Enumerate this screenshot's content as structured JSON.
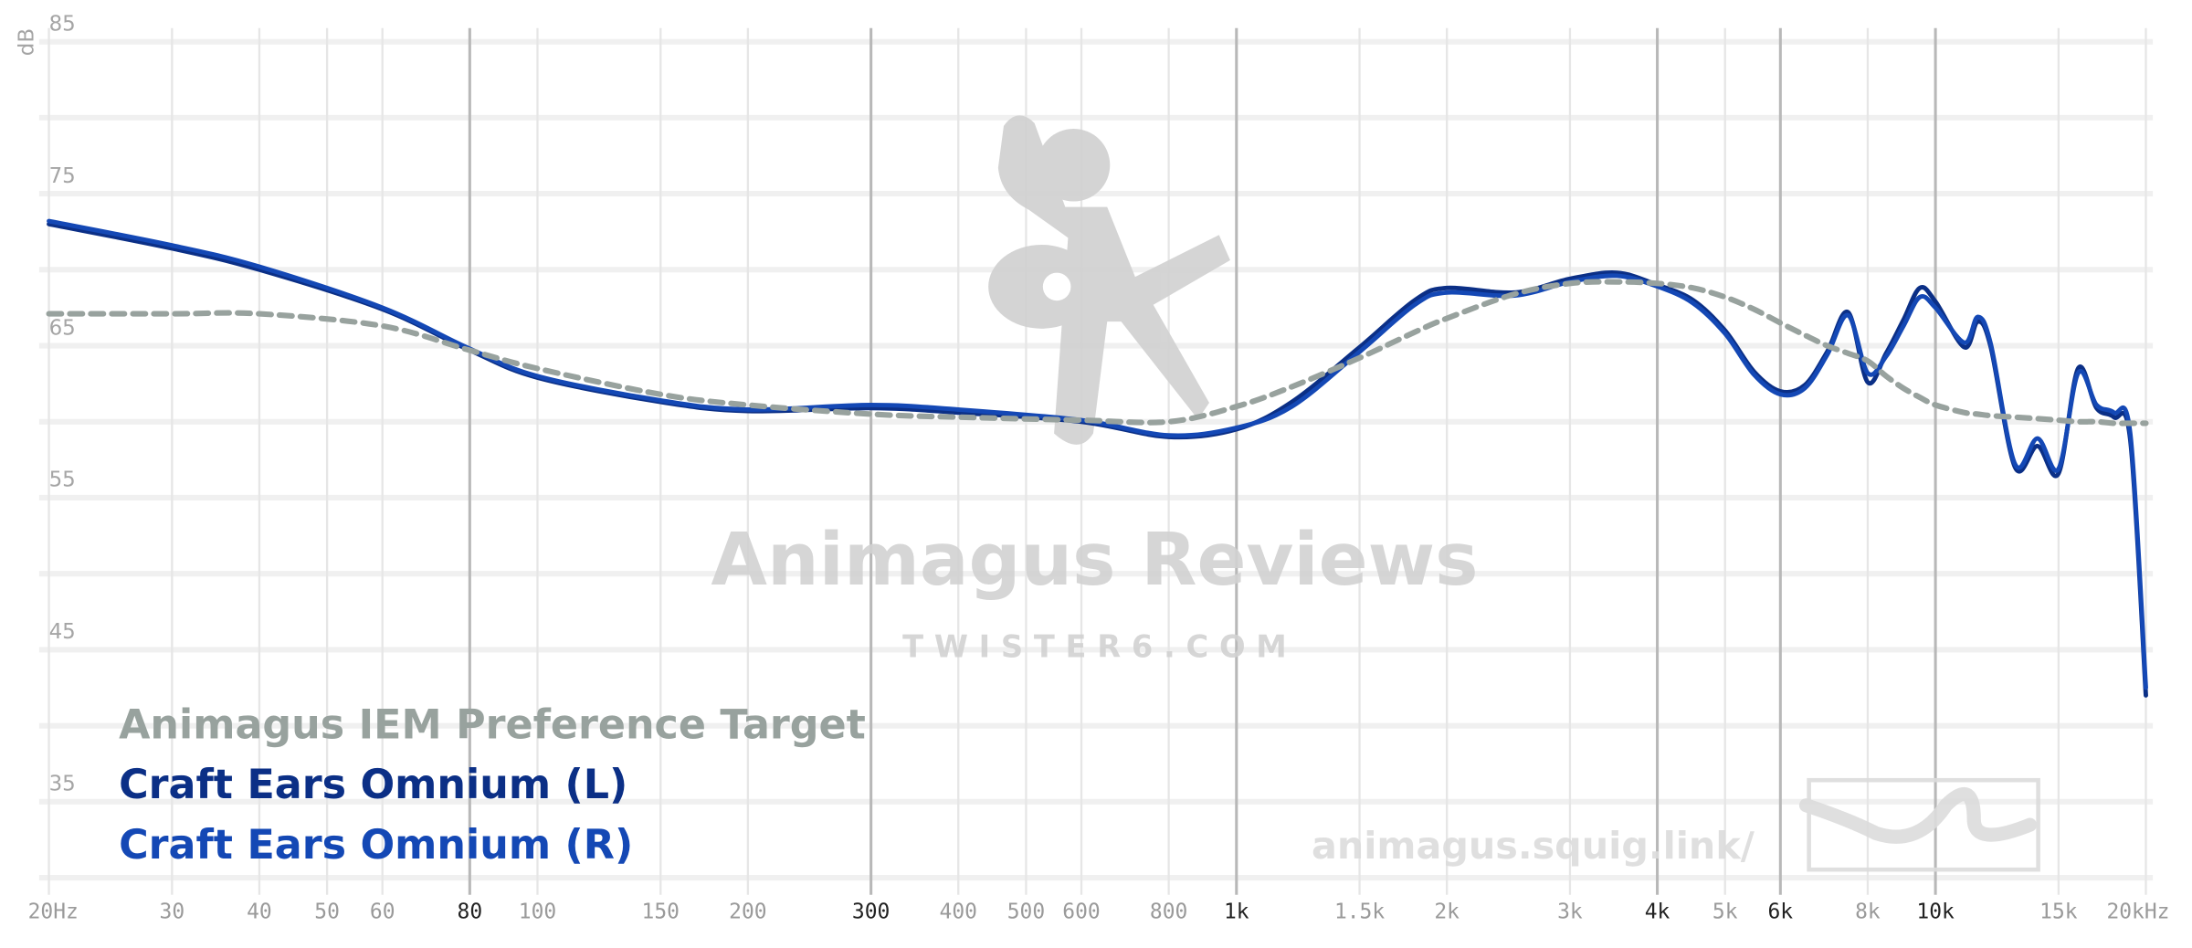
{
  "chart_data": {
    "type": "line",
    "y_label": "dB",
    "xscale": "log",
    "xlim": [
      20,
      20000
    ],
    "ylim": [
      29,
      87
    ],
    "xticks": [
      {
        "value": 20,
        "label": "20Hz"
      },
      30,
      40,
      50,
      60,
      80,
      100,
      150,
      200,
      300,
      400,
      500,
      600,
      800,
      {
        "value": 1000,
        "label": "1k"
      },
      {
        "value": 1500,
        "label": "1.5k"
      },
      {
        "value": 2000,
        "label": "2k"
      },
      {
        "value": 3000,
        "label": "3k"
      },
      {
        "value": 4000,
        "label": "4k"
      },
      {
        "value": 5000,
        "label": "5k"
      },
      {
        "value": 6000,
        "label": "6k"
      },
      {
        "value": 8000,
        "label": "8k"
      },
      {
        "value": 10000,
        "label": "10k"
      },
      {
        "value": 15000,
        "label": "15k"
      },
      {
        "value": 20000,
        "label": "20kHz"
      }
    ],
    "xticks_emphasis": [
      80,
      300,
      1000,
      4000,
      6000,
      10000
    ],
    "yticks": [
      35,
      45,
      55,
      65,
      75,
      85
    ],
    "ygrid": [
      30,
      35,
      40,
      45,
      50,
      55,
      60,
      65,
      70,
      75,
      80,
      85
    ],
    "grid": true,
    "legend": "bottom-left",
    "watermark": {
      "title": "Animagus Reviews",
      "subtitle": "T W I S T E R 6 . C O M",
      "url": "animagus.squig.link/"
    },
    "x": [
      20,
      30,
      40,
      60,
      80,
      100,
      150,
      200,
      300,
      400,
      600,
      800,
      1000,
      1200,
      1500,
      1800,
      2000,
      2500,
      3000,
      3500,
      4000,
      4500,
      5000,
      5500,
      6000,
      6500,
      7000,
      7500,
      8000,
      8500,
      9000,
      9500,
      10000,
      11000,
      11500,
      12000,
      13000,
      14000,
      15000,
      16000,
      17000,
      18000,
      19000,
      20000
    ],
    "series": [
      {
        "name": "Animagus IEM Preference Target",
        "color": "#98a29e",
        "dash": true,
        "values": [
          67.1,
          67.1,
          67.1,
          66.3,
          64.7,
          63.5,
          61.8,
          61.1,
          60.5,
          60.3,
          60.1,
          60.0,
          61.0,
          62.3,
          64.2,
          65.9,
          66.8,
          68.4,
          69.1,
          69.2,
          69.1,
          68.8,
          68.2,
          67.4,
          66.5,
          65.7,
          65.0,
          64.5,
          64.0,
          63.0,
          62.2,
          61.6,
          61.1,
          60.6,
          60.5,
          60.4,
          60.3,
          60.2,
          60.1,
          60.0,
          60.0,
          59.9,
          59.9,
          59.9
        ]
      },
      {
        "name": "Craft Ears Omnium (L)",
        "color": "#0b2f86",
        "dash": false,
        "values": [
          73.0,
          71.4,
          70.0,
          67.4,
          64.7,
          62.9,
          61.3,
          60.7,
          60.9,
          60.6,
          60.0,
          59.0,
          59.5,
          61.3,
          64.9,
          68.0,
          68.8,
          68.5,
          69.4,
          69.8,
          69.0,
          68.0,
          66.0,
          63.3,
          62.0,
          62.4,
          64.6,
          67.2,
          62.6,
          64.5,
          66.7,
          68.8,
          67.9,
          64.9,
          66.6,
          64.9,
          57.0,
          58.4,
          56.6,
          63.5,
          60.9,
          60.3,
          58.8,
          42.0
        ]
      },
      {
        "name": "Craft Ears Omnium (R)",
        "color": "#1448b5",
        "dash": false,
        "values": [
          73.2,
          71.6,
          70.2,
          67.5,
          64.8,
          63.0,
          61.4,
          60.8,
          61.1,
          60.8,
          60.1,
          59.1,
          59.6,
          61.0,
          64.6,
          67.7,
          68.5,
          68.3,
          69.2,
          69.6,
          68.9,
          67.8,
          65.8,
          63.1,
          61.8,
          62.2,
          64.4,
          67.0,
          63.2,
          64.3,
          66.3,
          68.2,
          67.5,
          65.2,
          66.9,
          65.1,
          57.2,
          58.9,
          56.9,
          63.2,
          61.1,
          60.6,
          59.2,
          42.5
        ]
      }
    ]
  }
}
